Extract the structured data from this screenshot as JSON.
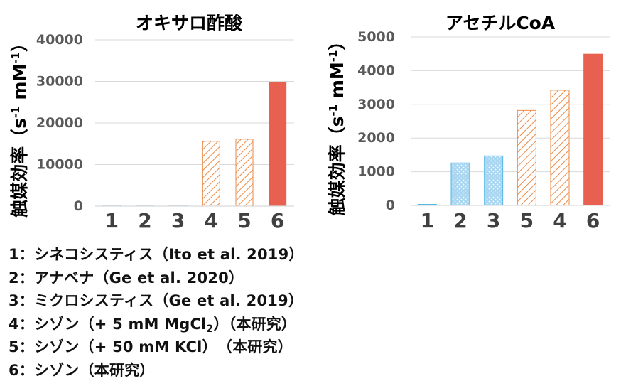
{
  "colors": {
    "blue_fill": "#bfe1f6",
    "blue_stroke": "#55b6e8",
    "orange_hatch": "#eb8a47",
    "red_solid": "#e8604f",
    "gridline": "#d9d9d9",
    "tick_text": "#595959"
  },
  "chart_data": [
    {
      "type": "bar",
      "title": "オキサロ酢酸",
      "ylabel": "触媒効率（s-1 mM-1）",
      "ylim": [
        0,
        40000
      ],
      "yticks": [
        "0",
        "10000",
        "20000",
        "30000",
        "40000"
      ],
      "grid": true,
      "categories": [
        "1",
        "2",
        "3",
        "4",
        "5",
        "6"
      ],
      "values": [
        150,
        180,
        200,
        15600,
        16100,
        29800
      ],
      "styles": [
        "blue-solid",
        "blue-solid",
        "blue-solid",
        "orange-hatch",
        "orange-hatch",
        "red-solid"
      ]
    },
    {
      "type": "bar",
      "title": "アセチルCoA",
      "ylabel": "触媒効率（s-1 mM-1）",
      "ylim": [
        0,
        5000
      ],
      "yticks": [
        "0",
        "1000",
        "2000",
        "3000",
        "4000",
        "5000"
      ],
      "grid": true,
      "categories": [
        "1",
        "2",
        "3",
        "5",
        "4",
        "6"
      ],
      "values": [
        25,
        1260,
        1470,
        2820,
        3420,
        4490
      ],
      "styles": [
        "blue-solid",
        "blue-dots",
        "blue-dots",
        "orange-hatch",
        "orange-hatch",
        "red-solid"
      ]
    }
  ],
  "ylabel_parts": {
    "main": "触媒効率（s",
    "sup1": "-1",
    "mid": " mM",
    "sup2": "-1",
    "end": "）"
  },
  "legend": {
    "items": [
      "1：シネコシスティス（Ito et al. 2019）",
      "2：アナベナ（Ge et al. 2020）",
      "3：ミクロシスティス（Ge et al. 2019）"
    ],
    "item4_prefix": "4：シゾン（+ 5 mM MgCl",
    "item4_sub": "2",
    "item4_suffix": "）（本研究）",
    "item5": "5：シゾン（+ 50 mM KCl）　（本研究）",
    "item6": "6：シゾン（本研究）"
  }
}
